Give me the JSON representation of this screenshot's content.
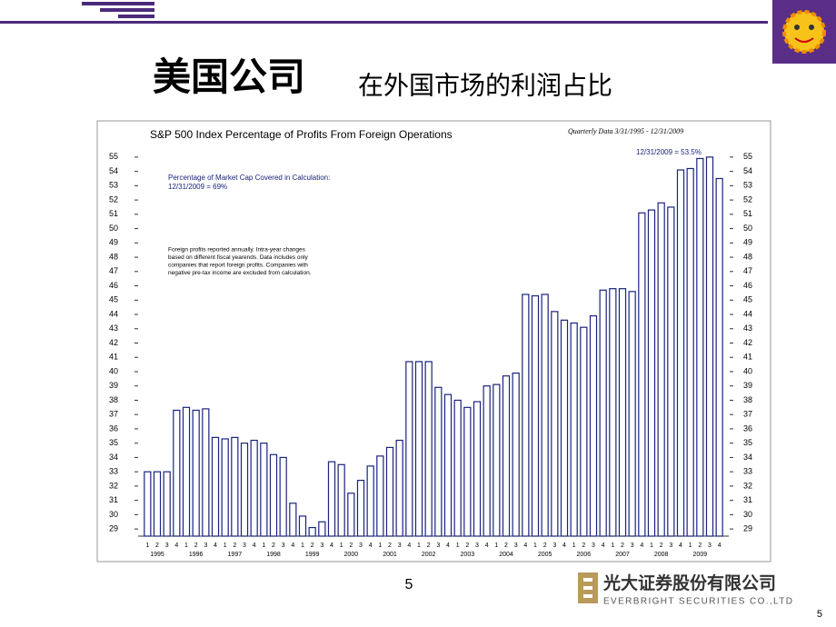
{
  "slide_title": "美国公司",
  "slide_subtitle": "在外国市场的利润占比",
  "page_number": "5",
  "corner_page_number": "5",
  "company_name": "光大证券股份有限公司",
  "company_name_en": "EVERBRIGHT SECURITIES CO.,LTD",
  "chart_data": {
    "type": "bar",
    "title": "S&P 500 Index Percentage of Profits From Foreign Operations",
    "subtitle": "Quarterly Data 3/31/1995 - 12/31/2009",
    "annotations": [
      "12/31/2009 = 53.5%",
      "Percentage of Market Cap Covered in Calculation:",
      "12/31/2009 = 69%",
      "Foreign profits reported annually. Intra-year changes",
      "based on different fiscal yearends. Data includes only",
      "companies that report foreign profits. Companies with",
      "negative pre-tax income are excluded from calculation."
    ],
    "years": [
      "1995",
      "1996",
      "1997",
      "1998",
      "1999",
      "2000",
      "2001",
      "2002",
      "2003",
      "2004",
      "2005",
      "2006",
      "2007",
      "2008",
      "2009"
    ],
    "categories": [
      "1",
      "2",
      "3",
      "4",
      "1",
      "2",
      "3",
      "4",
      "1",
      "2",
      "3",
      "4",
      "1",
      "2",
      "3",
      "4",
      "1",
      "2",
      "3",
      "4",
      "1",
      "2",
      "3",
      "4",
      "1",
      "2",
      "3",
      "4",
      "1",
      "2",
      "3",
      "4",
      "1",
      "2",
      "3",
      "4",
      "1",
      "2",
      "3",
      "4",
      "1",
      "2",
      "3",
      "4",
      "1",
      "2",
      "3",
      "4",
      "1",
      "2",
      "3",
      "4",
      "1",
      "2",
      "3",
      "4",
      "1",
      "2",
      "3",
      "4"
    ],
    "values": [
      33.0,
      33.0,
      33.0,
      37.3,
      37.5,
      37.3,
      37.4,
      35.4,
      35.3,
      35.4,
      35.0,
      35.2,
      35.0,
      34.2,
      34.0,
      30.8,
      29.9,
      29.1,
      29.5,
      33.7,
      33.5,
      31.5,
      32.4,
      33.4,
      34.1,
      34.7,
      35.2,
      40.7,
      40.7,
      40.7,
      38.9,
      38.4,
      38.0,
      37.5,
      37.9,
      39.0,
      39.1,
      39.7,
      39.9,
      45.4,
      45.3,
      45.4,
      44.2,
      43.6,
      43.4,
      43.1,
      43.9,
      45.7,
      45.8,
      45.8,
      45.6,
      51.1,
      51.3,
      51.8,
      51.5,
      54.1,
      54.2,
      54.9,
      55.0,
      53.5
    ],
    "color": "#1a237e",
    "ylim": [
      28.5,
      55.5
    ],
    "yticks": [
      29,
      30,
      31,
      32,
      33,
      34,
      35,
      36,
      37,
      38,
      39,
      40,
      41,
      42,
      43,
      44,
      45,
      46,
      47,
      48,
      49,
      50,
      51,
      52,
      53,
      54,
      55
    ]
  }
}
